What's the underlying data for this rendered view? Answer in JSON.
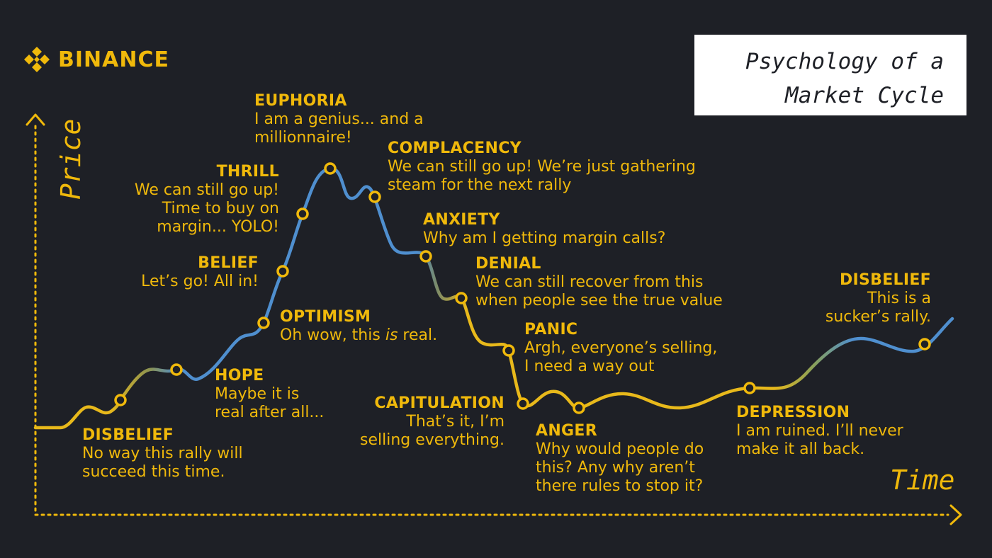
{
  "brand": {
    "name": "BINANCE",
    "logo_icon": "binance-diamond-icon",
    "color": "#f0b90b"
  },
  "title": {
    "line1": "Psychology of a",
    "line2": "Market Cycle"
  },
  "axes": {
    "y_label": "Price",
    "x_label": "Time"
  },
  "colors": {
    "background": "#1e2026",
    "accent": "#f0b90b",
    "curve_rise": "#4f8fcf",
    "curve_fall": "#e8b91b",
    "title_bg": "#ffffff"
  },
  "chart_data": {
    "type": "line",
    "title": "Psychology of a Market Cycle",
    "xlabel": "Time",
    "ylabel": "Price",
    "stages": [
      {
        "name": "DISBELIEF",
        "line1": "No way this rally will",
        "line2": "succeed this time."
      },
      {
        "name": "HOPE",
        "line1": "Maybe it is",
        "line2": "real after all..."
      },
      {
        "name": "OPTIMISM",
        "line1": "Oh wow, this is real."
      },
      {
        "name": "BELIEF",
        "line1": "Let’s go! All in!"
      },
      {
        "name": "THRILL",
        "line1": "We can still go up!",
        "line2": "Time to buy on",
        "line3": "margin... YOLO!"
      },
      {
        "name": "EUPHORIA",
        "line1": "I am a genius... and a",
        "line2": "millionnaire!"
      },
      {
        "name": "COMPLACENCY",
        "line1": "We can still go up! We’re just gathering",
        "line2": "steam for the next rally"
      },
      {
        "name": "ANXIETY",
        "line1": "Why am I getting margin calls?"
      },
      {
        "name": "DENIAL",
        "line1": "We can still recover from this",
        "line2": "when people see the true value"
      },
      {
        "name": "PANIC",
        "line1": "Argh, everyone’s selling,",
        "line2": "I need a way out"
      },
      {
        "name": "CAPITULATION",
        "line1": "That’s it, I’m",
        "line2": "selling everything."
      },
      {
        "name": "ANGER",
        "line1": "Why would people do",
        "line2": "this? Any why aren’t",
        "line3": "there rules to stop it?"
      },
      {
        "name": "DEPRESSION",
        "line1": "I am ruined. I’ll never",
        "line2": "make it all back."
      },
      {
        "name": "DISBELIEF",
        "line1": "This is a",
        "line2": "sucker’s rally."
      }
    ]
  }
}
